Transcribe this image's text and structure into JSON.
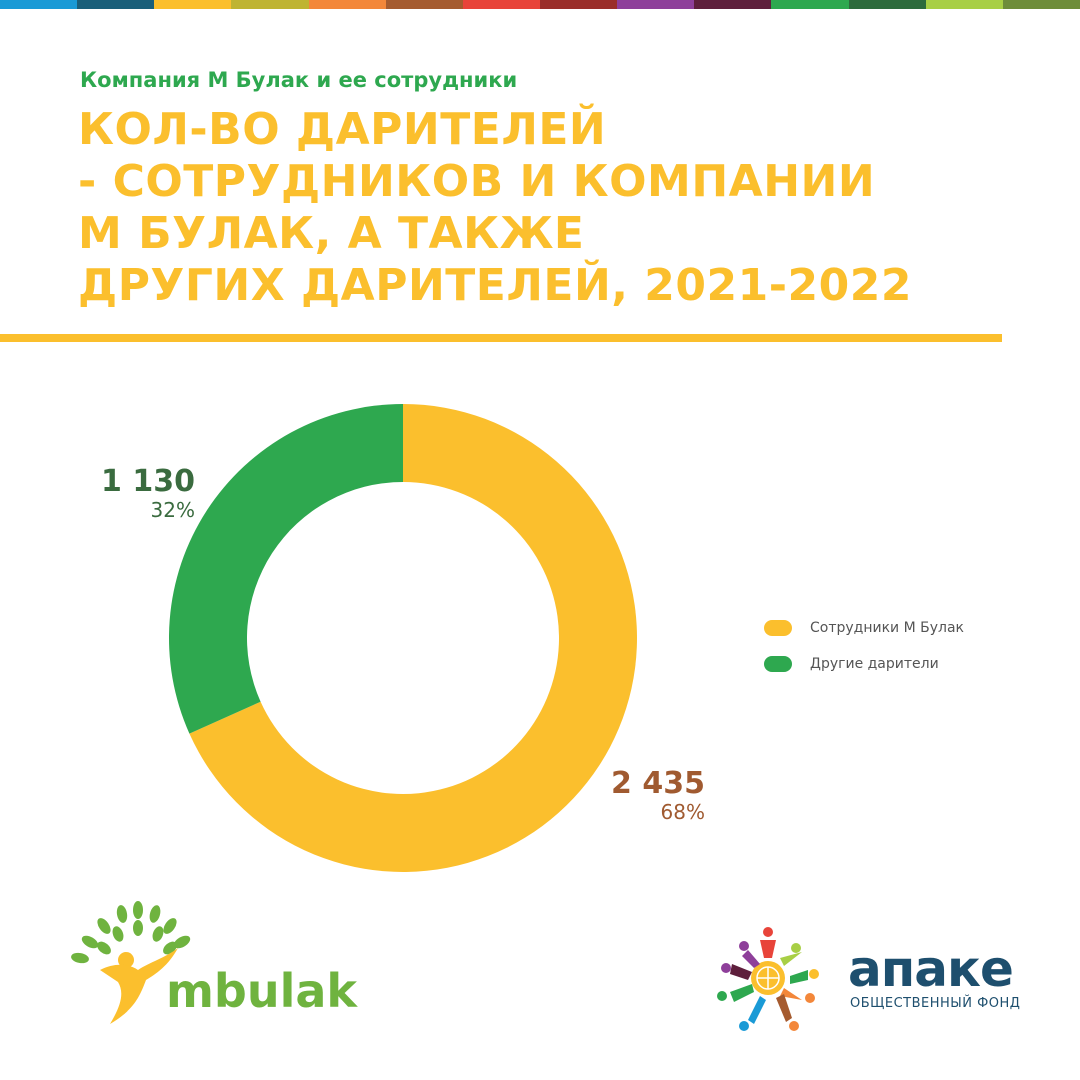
{
  "header": {
    "subtitle": "Компания М Булак и ее сотрудники",
    "title_lines": [
      "КОЛ-ВО ДАРИТЕЛЕЙ",
      "- СОТРУДНИКОВ И КОМПАНИИ",
      "М БУЛАК, А ТАКЖЕ",
      "ДРУГИХ ДАРИТЕЛЕЙ, 2021-2022"
    ]
  },
  "colors": {
    "accent_yellow": "#fbbf2d",
    "accent_green": "#2ea84f",
    "stripe": [
      "#1a9ad6",
      "#1a5f7a",
      "#fbbf2d",
      "#bfb432",
      "#f3873a",
      "#a55b2f",
      "#e8443a",
      "#9a2e2a",
      "#8e3f9a",
      "#5e1f3c",
      "#2ea84f",
      "#2d6b3c",
      "#a8cf45",
      "#6e8d3a"
    ]
  },
  "chart_data": {
    "type": "pie",
    "donut": true,
    "slices": [
      {
        "label": "Сотрудники М Булак",
        "value": 2435,
        "value_label": "2 435",
        "percent_label": "68%",
        "color": "#fbbf2d"
      },
      {
        "label": "Другие дарители",
        "value": 1130,
        "value_label": "1 130",
        "percent_label": "32%",
        "color": "#2ea84f"
      }
    ],
    "legend_position": "right"
  },
  "callouts": {
    "employees": {
      "value": "2 435",
      "percent": "68%",
      "color": "#a05a30"
    },
    "others": {
      "value": "1 130",
      "percent": "32%",
      "color": "#3a6b3f"
    }
  },
  "legend": {
    "items": [
      {
        "label": "Сотрудники М Булак",
        "color": "#fbbf2d"
      },
      {
        "label": "Другие дарители",
        "color": "#2ea84f"
      }
    ]
  },
  "logos": {
    "mbulak": {
      "wordmark": "mbulak",
      "icon": "tree-person-icon"
    },
    "apake": {
      "wordmark": "апаке",
      "tagline": "ОБЩЕСТВЕННЫЙ ФОНД",
      "icon": "flower-people-icon"
    }
  }
}
